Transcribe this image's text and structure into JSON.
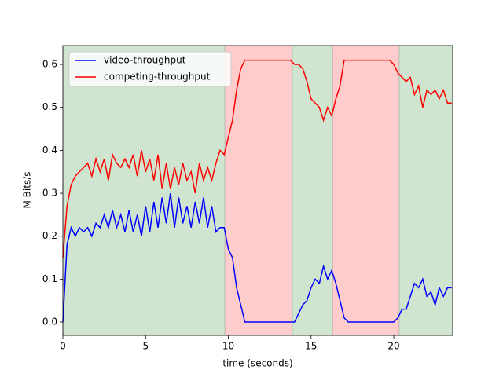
{
  "chart_data": {
    "type": "line",
    "xlabel": "time (seconds)",
    "ylabel": "M Bits/s",
    "x": [
      0,
      0.25,
      0.5,
      0.75,
      1,
      1.25,
      1.5,
      1.75,
      2,
      2.25,
      2.5,
      2.75,
      3,
      3.25,
      3.5,
      3.75,
      4,
      4.25,
      4.5,
      4.75,
      5,
      5.25,
      5.5,
      5.75,
      6,
      6.25,
      6.5,
      6.75,
      7,
      7.25,
      7.5,
      7.75,
      8,
      8.25,
      8.5,
      8.75,
      9,
      9.25,
      9.5,
      9.75,
      10,
      10.25,
      10.5,
      10.75,
      11,
      11.25,
      11.5,
      11.75,
      12,
      12.25,
      12.5,
      12.75,
      13,
      13.25,
      13.5,
      13.75,
      14,
      14.25,
      14.5,
      14.75,
      15,
      15.25,
      15.5,
      15.75,
      16,
      16.25,
      16.5,
      16.75,
      17,
      17.25,
      17.5,
      17.75,
      18,
      18.25,
      18.5,
      18.75,
      19,
      19.25,
      19.5,
      19.75,
      20,
      20.25,
      20.5,
      20.75,
      21,
      21.25,
      21.5,
      21.75,
      22,
      22.25,
      22.5,
      22.75,
      23,
      23.25,
      23.5
    ],
    "series": [
      {
        "name": "video-throughput",
        "color": "#0000ff",
        "values": [
          0,
          0.18,
          0.22,
          0.2,
          0.22,
          0.21,
          0.22,
          0.2,
          0.23,
          0.22,
          0.25,
          0.22,
          0.26,
          0.22,
          0.25,
          0.21,
          0.26,
          0.21,
          0.25,
          0.2,
          0.27,
          0.21,
          0.28,
          0.22,
          0.29,
          0.23,
          0.3,
          0.22,
          0.29,
          0.23,
          0.27,
          0.22,
          0.28,
          0.23,
          0.29,
          0.22,
          0.27,
          0.21,
          0.22,
          0.22,
          0.17,
          0.15,
          0.08,
          0.04,
          0,
          0,
          0,
          0,
          0,
          0,
          0,
          0,
          0,
          0,
          0,
          0,
          0,
          0.02,
          0.04,
          0.05,
          0.08,
          0.1,
          0.09,
          0.13,
          0.1,
          0.12,
          0.09,
          0.05,
          0.01,
          0,
          0,
          0,
          0,
          0,
          0,
          0,
          0,
          0,
          0,
          0,
          0,
          0.01,
          0.03,
          0.03,
          0.06,
          0.09,
          0.08,
          0.1,
          0.06,
          0.07,
          0.04,
          0.08,
          0.06,
          0.08,
          0.08
        ]
      },
      {
        "name": "competing-throughput",
        "color": "#ff0000",
        "values": [
          0.15,
          0.27,
          0.32,
          0.34,
          0.35,
          0.36,
          0.37,
          0.34,
          0.38,
          0.35,
          0.38,
          0.33,
          0.39,
          0.37,
          0.36,
          0.38,
          0.36,
          0.39,
          0.34,
          0.4,
          0.35,
          0.38,
          0.33,
          0.39,
          0.31,
          0.37,
          0.31,
          0.36,
          0.32,
          0.37,
          0.33,
          0.35,
          0.3,
          0.37,
          0.33,
          0.36,
          0.33,
          0.37,
          0.4,
          0.39,
          0.43,
          0.47,
          0.54,
          0.59,
          0.61,
          0.61,
          0.61,
          0.61,
          0.61,
          0.61,
          0.61,
          0.61,
          0.61,
          0.61,
          0.61,
          0.61,
          0.6,
          0.6,
          0.59,
          0.56,
          0.52,
          0.51,
          0.5,
          0.47,
          0.5,
          0.48,
          0.52,
          0.55,
          0.61,
          0.61,
          0.61,
          0.61,
          0.61,
          0.61,
          0.61,
          0.61,
          0.61,
          0.61,
          0.61,
          0.61,
          0.6,
          0.58,
          0.57,
          0.56,
          0.57,
          0.53,
          0.55,
          0.5,
          0.54,
          0.53,
          0.54,
          0.52,
          0.54,
          0.51,
          0.51
        ]
      }
    ],
    "regions": [
      {
        "start": 0,
        "end": 9.79,
        "color": "#cfe5cf"
      },
      {
        "start": 9.79,
        "end": 13.87,
        "color": "#ffcccc"
      },
      {
        "start": 13.87,
        "end": 16.3,
        "color": "#cfe5cf"
      },
      {
        "start": 16.3,
        "end": 20.33,
        "color": "#ffcccc"
      },
      {
        "start": 20.33,
        "end": 23.56,
        "color": "#cfe5cf"
      }
    ],
    "xlim": [
      0,
      23.56
    ],
    "ylim": [
      -0.031,
      0.644
    ],
    "xticks": [
      0,
      5,
      10,
      15,
      20
    ],
    "yticks": [
      {
        "value": 0,
        "label": "0.0"
      },
      0.1,
      0.2,
      0.3,
      0.4,
      0.5,
      0.6
    ],
    "legend": "upper left"
  }
}
